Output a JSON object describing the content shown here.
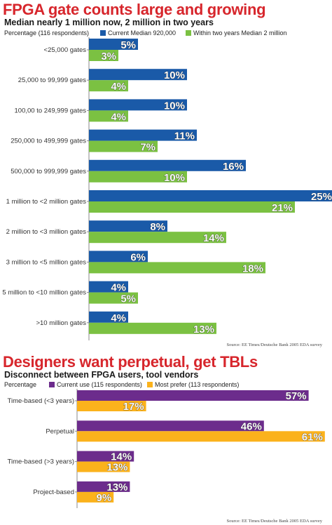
{
  "chart_data": [
    {
      "type": "bar",
      "title": "FPGA gate counts large and growing",
      "subtitle": "Median nearly 1 million now, 2 million in two years",
      "units_label": "Percentage",
      "respondents": "(116 respondents)",
      "categories": [
        "<25,000 gates",
        "25,000 to 99,999 gates",
        "100,00 to 249,999 gates",
        "250,000 to 499,999 gates",
        "500,000 to 999,999 gates",
        "1 million to <2 million gates",
        "2 million to <3 million gates",
        "3 million to <5 million gates",
        "5 million to <10 million gates",
        ">10 million gates"
      ],
      "series": [
        {
          "name": "Current Median 920,000",
          "color": "#1a5aa8",
          "values": [
            5,
            10,
            10,
            11,
            16,
            25,
            8,
            6,
            4,
            4
          ],
          "labels": [
            "5%",
            "10%",
            "10%",
            "11%",
            "16%",
            "25%",
            "8%",
            "6%",
            "4%",
            "4%"
          ]
        },
        {
          "name": "Within two years Median 2 million",
          "color": "#7bc142",
          "values": [
            3,
            4,
            4,
            7,
            10,
            21,
            14,
            18,
            5,
            13
          ],
          "labels": [
            "3%",
            "4%",
            "4%",
            "7%",
            "10%",
            "21%",
            "14%",
            "18%",
            "5%",
            "13%"
          ]
        }
      ],
      "source": "Source: EE Times/Deutsche Bank 2005 EDA survey",
      "xlim": [
        0,
        25
      ]
    },
    {
      "type": "bar",
      "title": "Designers want perpetual, get TBLs",
      "subtitle": "Disconnect between FPGA users, tool vendors",
      "units_label": "Percentage",
      "categories": [
        "Time-based (<3 years)",
        "Perpetual",
        "Time-based (>3 years)",
        "Project-based"
      ],
      "series": [
        {
          "name": "Current use (115 respondents)",
          "color": "#6c2c8c",
          "values": [
            57,
            46,
            14,
            13
          ],
          "labels": [
            "57%",
            "46%",
            "14%",
            "13%"
          ]
        },
        {
          "name": "Most prefer (113 respondents)",
          "color": "#fbb21c",
          "values": [
            17,
            61,
            13,
            9
          ],
          "labels": [
            "17%",
            "61%",
            "13%",
            "9%"
          ]
        }
      ],
      "source": "Source: EE Times/Deutsche Bank 2005 EDA survey",
      "xlim": [
        0,
        61
      ]
    }
  ]
}
